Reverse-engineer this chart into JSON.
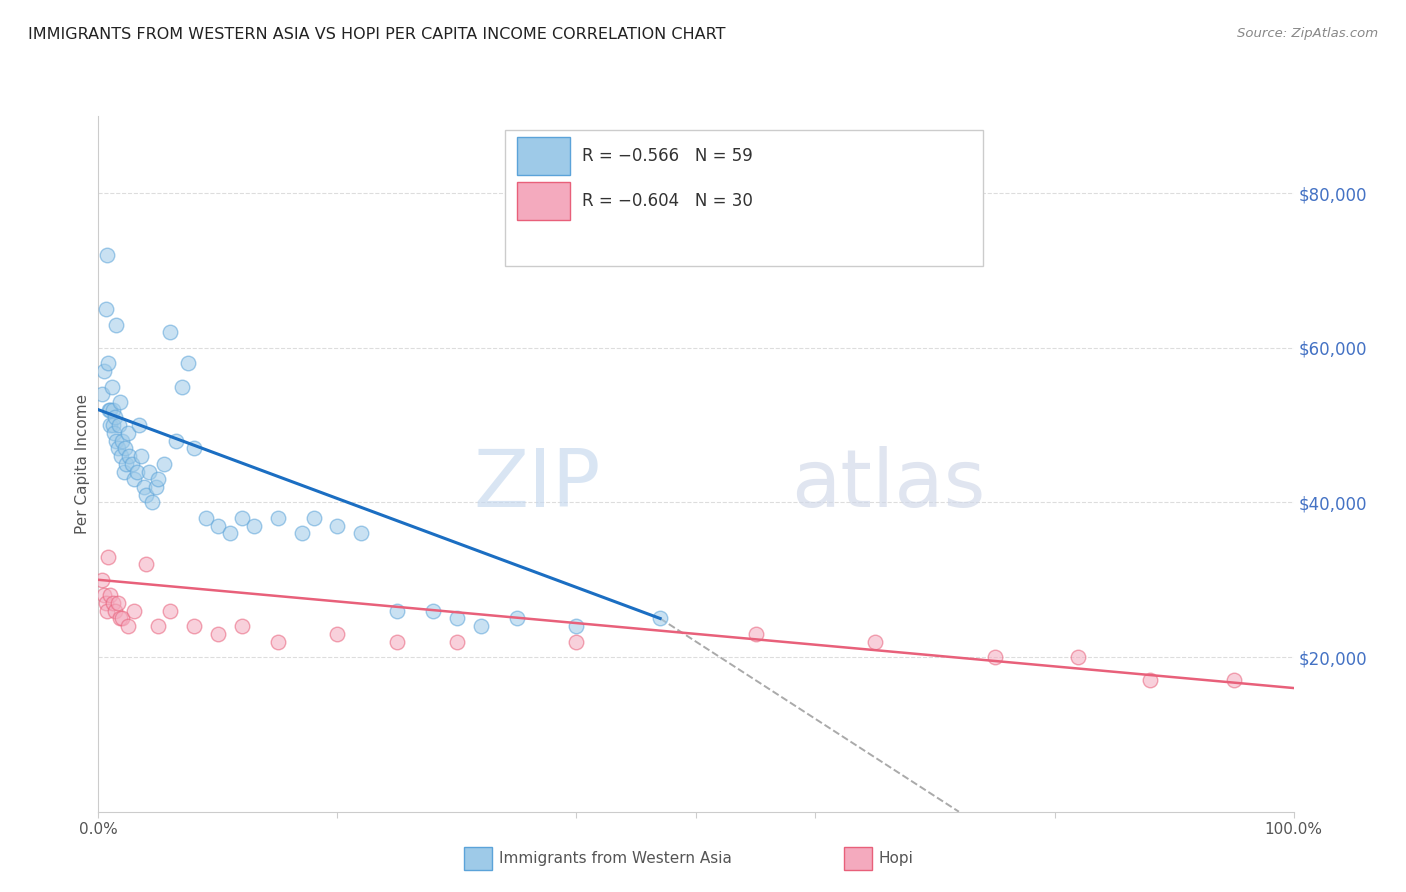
{
  "title": "IMMIGRANTS FROM WESTERN ASIA VS HOPI PER CAPITA INCOME CORRELATION CHART",
  "source": "Source: ZipAtlas.com",
  "ylabel": "Per Capita Income",
  "watermark_zip": "ZIP",
  "watermark_atlas": "atlas",
  "right_ytick_labels": [
    "$80,000",
    "$60,000",
    "$40,000",
    "$20,000"
  ],
  "right_ytick_values": [
    80000,
    60000,
    40000,
    20000
  ],
  "ylim": [
    0,
    90000
  ],
  "xlim": [
    0,
    1.0
  ],
  "legend_label_blue": "R = −0.566   N = 59",
  "legend_label_pink": "R = −0.604   N = 30",
  "blue_scatter_x": [
    0.003,
    0.005,
    0.006,
    0.007,
    0.008,
    0.009,
    0.01,
    0.01,
    0.011,
    0.012,
    0.012,
    0.013,
    0.014,
    0.015,
    0.015,
    0.016,
    0.017,
    0.018,
    0.019,
    0.02,
    0.021,
    0.022,
    0.023,
    0.025,
    0.026,
    0.028,
    0.03,
    0.032,
    0.034,
    0.036,
    0.038,
    0.04,
    0.042,
    0.045,
    0.048,
    0.05,
    0.055,
    0.06,
    0.065,
    0.07,
    0.075,
    0.08,
    0.09,
    0.1,
    0.11,
    0.12,
    0.13,
    0.15,
    0.17,
    0.18,
    0.2,
    0.22,
    0.25,
    0.28,
    0.3,
    0.32,
    0.35,
    0.4,
    0.47
  ],
  "blue_scatter_y": [
    54000,
    57000,
    65000,
    72000,
    58000,
    52000,
    50000,
    52000,
    55000,
    50000,
    52000,
    49000,
    51000,
    48000,
    63000,
    47000,
    50000,
    53000,
    46000,
    48000,
    44000,
    47000,
    45000,
    49000,
    46000,
    45000,
    43000,
    44000,
    50000,
    46000,
    42000,
    41000,
    44000,
    40000,
    42000,
    43000,
    45000,
    62000,
    48000,
    55000,
    58000,
    47000,
    38000,
    37000,
    36000,
    38000,
    37000,
    38000,
    36000,
    38000,
    37000,
    36000,
    26000,
    26000,
    25000,
    24000,
    25000,
    24000,
    25000
  ],
  "pink_scatter_x": [
    0.003,
    0.005,
    0.006,
    0.007,
    0.008,
    0.01,
    0.012,
    0.014,
    0.016,
    0.018,
    0.02,
    0.025,
    0.03,
    0.04,
    0.05,
    0.06,
    0.08,
    0.1,
    0.12,
    0.15,
    0.2,
    0.25,
    0.3,
    0.4,
    0.55,
    0.65,
    0.75,
    0.82,
    0.88,
    0.95
  ],
  "pink_scatter_y": [
    30000,
    28000,
    27000,
    26000,
    33000,
    28000,
    27000,
    26000,
    27000,
    25000,
    25000,
    24000,
    26000,
    32000,
    24000,
    26000,
    24000,
    23000,
    24000,
    22000,
    23000,
    22000,
    22000,
    22000,
    23000,
    22000,
    20000,
    20000,
    17000,
    17000
  ],
  "blue_line_color": "#1B6EC2",
  "pink_line_color": "#E8607A",
  "dashed_line_color": "#AAAAAA",
  "blue_line_x0": 0.0,
  "blue_line_x1": 0.47,
  "blue_line_y0": 52000,
  "blue_line_y1": 25000,
  "pink_line_x0": 0.0,
  "pink_line_x1": 1.0,
  "pink_line_y0": 30000,
  "pink_line_y1": 16000,
  "dashed_line_x0": 0.47,
  "dashed_line_x1": 0.72,
  "dashed_line_y0": 25000,
  "dashed_line_y1": 0,
  "scatter_alpha": 0.55,
  "scatter_size": 110,
  "scatter_blue_facecolor": "#9ECAE8",
  "scatter_blue_edgecolor": "#5BA3D9",
  "scatter_pink_facecolor": "#F4AABE",
  "scatter_pink_edgecolor": "#E8607A",
  "background_color": "#FFFFFF",
  "grid_color": "#DDDDDD",
  "title_color": "#222222",
  "right_yaxis_color": "#4472C4",
  "source_color": "#888888",
  "ylabel_color": "#555555"
}
